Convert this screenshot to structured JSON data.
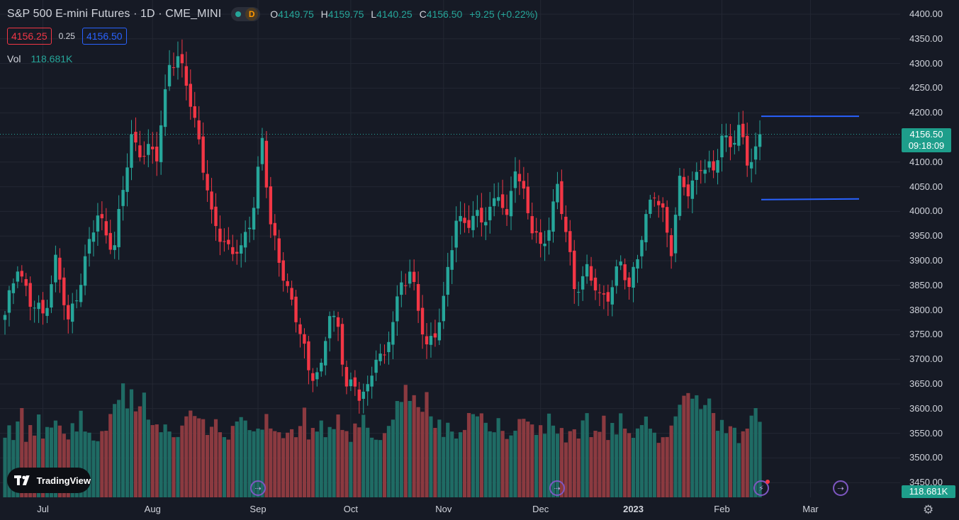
{
  "header": {
    "title": "S&P 500 E-mini Futures · 1D · CME_MINI",
    "interval_badge": "D",
    "ohlc": {
      "o_label": "O",
      "o_value": "4149.75",
      "h_label": "H",
      "h_value": "4159.75",
      "l_label": "L",
      "l_value": "4140.25",
      "c_label": "C",
      "c_value": "4156.50",
      "change": "+9.25 (+0.22%)"
    },
    "bid": "4156.25",
    "spread": "0.25",
    "ask": "4156.50",
    "vol_label": "Vol",
    "vol_value": "118.681K"
  },
  "price_tag": {
    "price": "4156.50",
    "countdown": "09:18:09"
  },
  "volume_tag": "118.681K",
  "logo_text": "TradingView",
  "colors": {
    "background": "#161a25",
    "up": "#26a69a",
    "down": "#f23645",
    "up_volume": "#1f6b64",
    "down_volume": "#8b3a40",
    "level_line": "#2962ff",
    "grid": "#232733"
  },
  "icons": {
    "logo": "tradingview-logo-icon",
    "event": "dividend-event-icon",
    "flash": "flash-event-icon",
    "settings": "gear-icon"
  },
  "chart_data": {
    "type": "candlestick",
    "title": "",
    "y_range": [
      3425,
      4410
    ],
    "y_ticks": [
      "4400.00",
      "4350.00",
      "4300.00",
      "4250.00",
      "4200.00",
      "4150.00",
      "4100.00",
      "4050.00",
      "4000.00",
      "3950.00",
      "3900.00",
      "3850.00",
      "3800.00",
      "3750.00",
      "3700.00",
      "3650.00",
      "3600.00",
      "3550.00",
      "3500.00",
      "3450.00"
    ],
    "x_ticks": [
      {
        "label": "Jul",
        "bold": false
      },
      {
        "label": "Aug",
        "bold": false
      },
      {
        "label": "Sep",
        "bold": false
      },
      {
        "label": "Oct",
        "bold": false
      },
      {
        "label": "Nov",
        "bold": false
      },
      {
        "label": "Dec",
        "bold": false
      },
      {
        "label": "2023",
        "bold": true
      },
      {
        "label": "Feb",
        "bold": false
      },
      {
        "label": "Mar",
        "bold": false
      }
    ],
    "x_tick_bar_index": [
      9,
      35,
      60,
      82,
      104,
      127,
      149,
      170,
      191
    ],
    "horizontal_levels": [
      4193,
      4024
    ],
    "last_price": 4156.5,
    "anchors": [
      [
        0,
        3780
      ],
      [
        3,
        3900
      ],
      [
        6,
        3810
      ],
      [
        9,
        3790
      ],
      [
        12,
        3900
      ],
      [
        15,
        3770
      ],
      [
        18,
        3870
      ],
      [
        22,
        3990
      ],
      [
        26,
        3930
      ],
      [
        30,
        4150
      ],
      [
        33,
        4120
      ],
      [
        36,
        4110
      ],
      [
        39,
        4310
      ],
      [
        41,
        4300
      ],
      [
        43,
        4260
      ],
      [
        46,
        4150
      ],
      [
        49,
        3980
      ],
      [
        53,
        3930
      ],
      [
        56,
        3910
      ],
      [
        59,
        4020
      ],
      [
        61,
        4150
      ],
      [
        63,
        3960
      ],
      [
        66,
        3880
      ],
      [
        69,
        3780
      ],
      [
        72,
        3680
      ],
      [
        75,
        3680
      ],
      [
        77,
        3790
      ],
      [
        79,
        3760
      ],
      [
        81,
        3660
      ],
      [
        84,
        3620
      ],
      [
        86,
        3640
      ],
      [
        88,
        3720
      ],
      [
        90,
        3690
      ],
      [
        92,
        3780
      ],
      [
        94,
        3860
      ],
      [
        96,
        3880
      ],
      [
        98,
        3790
      ],
      [
        100,
        3730
      ],
      [
        102,
        3760
      ],
      [
        104,
        3810
      ],
      [
        107,
        3990
      ],
      [
        110,
        3980
      ],
      [
        113,
        3980
      ],
      [
        117,
        4040
      ],
      [
        119,
        3970
      ],
      [
        121,
        4100
      ],
      [
        123,
        4040
      ],
      [
        125,
        3960
      ],
      [
        127,
        3920
      ],
      [
        129,
        3980
      ],
      [
        131,
        4050
      ],
      [
        133,
        3950
      ],
      [
        135,
        3850
      ],
      [
        138,
        3880
      ],
      [
        141,
        3820
      ],
      [
        143,
        3840
      ],
      [
        146,
        3890
      ],
      [
        148,
        3840
      ],
      [
        151,
        3960
      ],
      [
        154,
        4030
      ],
      [
        156,
        4000
      ],
      [
        158,
        3930
      ],
      [
        160,
        4050
      ],
      [
        162,
        4040
      ],
      [
        165,
        4100
      ],
      [
        168,
        4070
      ],
      [
        170,
        4160
      ],
      [
        172,
        4140
      ],
      [
        174,
        4160
      ],
      [
        176,
        4100
      ],
      [
        178,
        4130
      ],
      [
        179,
        4156
      ]
    ],
    "volume_max_pct": 1.0,
    "volume_levels_pct": [
      0.55,
      0.6,
      0.5,
      0.65,
      0.75,
      0.5,
      0.6,
      0.55,
      0.7,
      0.5,
      0.62,
      0.58,
      0.7,
      0.6,
      0.55,
      0.5,
      0.62,
      0.6,
      0.72,
      0.58,
      0.55,
      0.48,
      0.5,
      0.55,
      0.6,
      0.7,
      0.8,
      0.85,
      0.95,
      0.82,
      0.9,
      0.75,
      0.78,
      0.88,
      0.7,
      0.6,
      0.65,
      0.55,
      0.62,
      0.58,
      0.5,
      0.55,
      0.6,
      0.7,
      0.75,
      0.68,
      0.72,
      0.65,
      0.55,
      0.6,
      0.66,
      0.58,
      0.5,
      0.52,
      0.6,
      0.65,
      0.7,
      0.64,
      0.62,
      0.55,
      0.6,
      0.58,
      0.7,
      0.62,
      0.55,
      0.58,
      0.5
    ]
  }
}
